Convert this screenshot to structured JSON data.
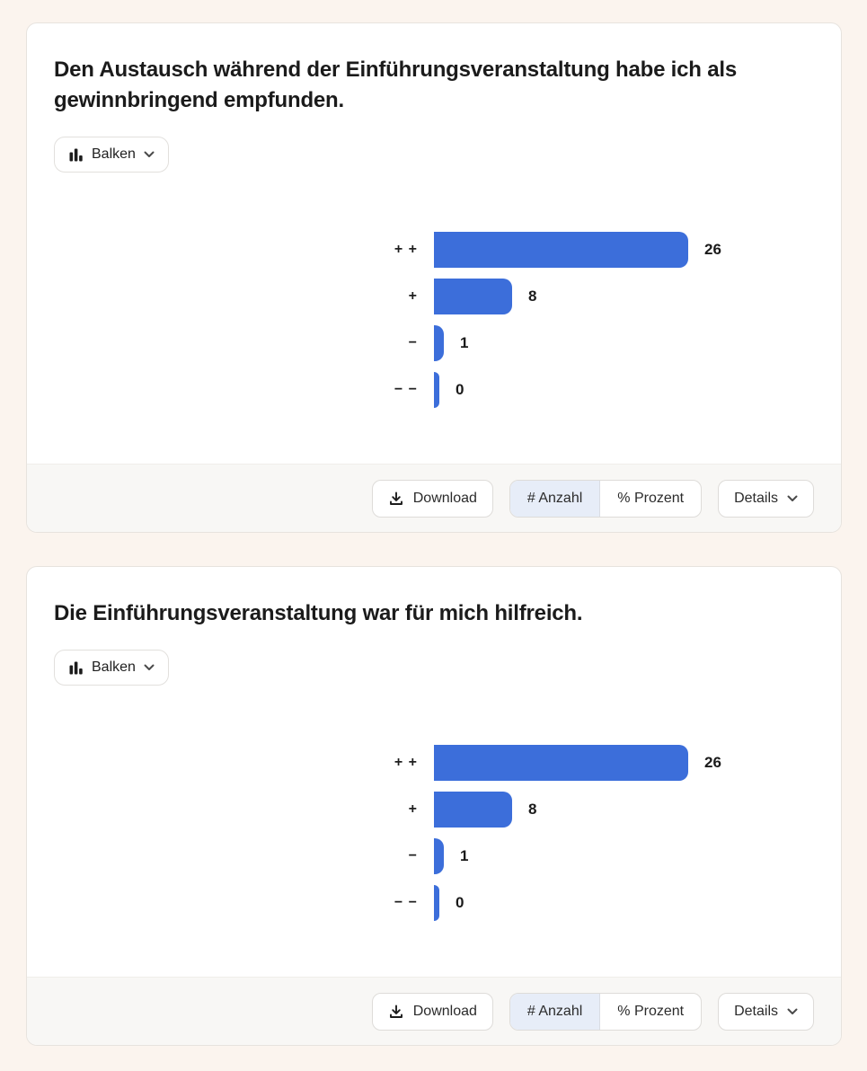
{
  "colors": {
    "page_bg": "#FBF4EE",
    "bar": "#3C6EDA",
    "active_segment_bg": "#E7EDF8"
  },
  "cards": [
    {
      "title": "Den Austausch während der Einführungsveranstaltung habe ich als gewinnbringend empfunden.",
      "chart_type_button": {
        "label": "Balken",
        "icon": "bar-chart-icon"
      },
      "chart_data": {
        "type": "bar",
        "orientation": "horizontal",
        "title": "Den Austausch während der Einführungsveranstaltung habe ich als gewinnbringend empfunden.",
        "categories": [
          "+ +",
          "+",
          "−",
          "− −"
        ],
        "values": [
          26,
          8,
          1,
          0
        ],
        "value_labels": [
          "26",
          "8",
          "1",
          "0"
        ],
        "xlim": [
          0,
          26
        ],
        "grid": false,
        "legend": false,
        "bar_color": "#3C6EDA"
      },
      "footer": {
        "download_label": "Download",
        "count_toggle_label": "# Anzahl",
        "percent_toggle_label": "% Prozent",
        "selected_toggle": "# Anzahl",
        "details_label": "Details"
      }
    },
    {
      "title": "Die Einführungsveranstaltung war für mich hilfreich.",
      "chart_type_button": {
        "label": "Balken",
        "icon": "bar-chart-icon"
      },
      "chart_data": {
        "type": "bar",
        "orientation": "horizontal",
        "title": "Die Einführungsveranstaltung war für mich hilfreich.",
        "categories": [
          "+ +",
          "+",
          "−",
          "− −"
        ],
        "values": [
          26,
          8,
          1,
          0
        ],
        "value_labels": [
          "26",
          "8",
          "1",
          "0"
        ],
        "xlim": [
          0,
          26
        ],
        "grid": false,
        "legend": false,
        "bar_color": "#3C6EDA"
      },
      "footer": {
        "download_label": "Download",
        "count_toggle_label": "# Anzahl",
        "percent_toggle_label": "% Prozent",
        "selected_toggle": "# Anzahl",
        "details_label": "Details"
      }
    }
  ]
}
